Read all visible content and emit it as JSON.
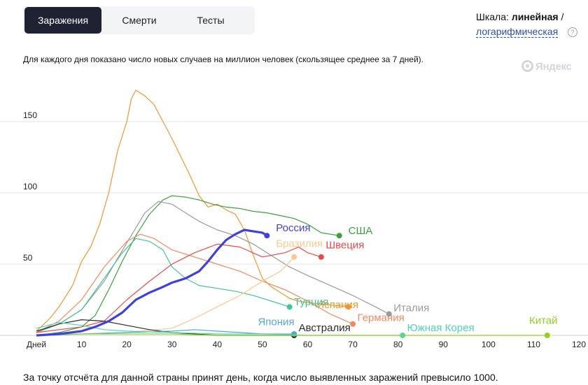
{
  "tabs": [
    {
      "label": "Заражения",
      "active": true
    },
    {
      "label": "Смерти",
      "active": false
    },
    {
      "label": "Тесты",
      "active": false
    }
  ],
  "scale": {
    "prefix": "Шкала:",
    "current": "линейная",
    "separator": "/",
    "alternative": "логарифмическая",
    "help": "?"
  },
  "description": "Для каждого дня показано число новых случаев на миллион человек (скользящее среднее за 7 дней).",
  "logo": "Яндекс",
  "footnote": "За точку отсчёта для данной страны принят день, когда число выявленных заражений превысило 1000.",
  "chart_data": {
    "type": "line",
    "x_first_label": "Дней",
    "xlim": [
      0,
      120
    ],
    "ylim": [
      0,
      175
    ],
    "x_ticks": [
      10,
      20,
      30,
      40,
      50,
      60,
      70,
      80,
      90,
      100,
      110,
      120
    ],
    "y_ticks": [
      50,
      100,
      150
    ],
    "grid": true,
    "series": [
      {
        "name": "Испания",
        "color": "#f0962e",
        "label_at": [
          62,
          19
        ],
        "highlight": false,
        "points": [
          [
            0,
            3
          ],
          [
            3,
            12
          ],
          [
            5,
            20
          ],
          [
            8,
            35
          ],
          [
            10,
            52
          ],
          [
            12,
            62
          ],
          [
            14,
            78
          ],
          [
            16,
            100
          ],
          [
            18,
            130
          ],
          [
            20,
            150
          ],
          [
            21,
            166
          ],
          [
            22,
            172
          ],
          [
            24,
            168
          ],
          [
            26,
            162
          ],
          [
            28,
            150
          ],
          [
            30,
            138
          ],
          [
            32,
            125
          ],
          [
            34,
            112
          ],
          [
            36,
            98
          ],
          [
            38,
            90
          ],
          [
            40,
            92
          ],
          [
            42,
            88
          ],
          [
            44,
            85
          ],
          [
            46,
            74
          ],
          [
            48,
            56
          ],
          [
            50,
            40
          ],
          [
            52,
            34
          ],
          [
            54,
            30
          ],
          [
            56,
            26
          ],
          [
            58,
            24
          ],
          [
            60,
            23
          ],
          [
            63,
            22
          ],
          [
            66,
            21
          ],
          [
            69,
            20
          ]
        ]
      },
      {
        "name": "США",
        "color": "#3ca03c",
        "label_at": [
          69,
          71
        ],
        "highlight": false,
        "points": [
          [
            0,
            0
          ],
          [
            5,
            2
          ],
          [
            10,
            6
          ],
          [
            13,
            14
          ],
          [
            16,
            32
          ],
          [
            19,
            52
          ],
          [
            22,
            70
          ],
          [
            25,
            85
          ],
          [
            28,
            95
          ],
          [
            30,
            98
          ],
          [
            33,
            97
          ],
          [
            36,
            95
          ],
          [
            39,
            92
          ],
          [
            42,
            90
          ],
          [
            45,
            89
          ],
          [
            48,
            87
          ],
          [
            51,
            86
          ],
          [
            54,
            84
          ],
          [
            57,
            82
          ],
          [
            60,
            78
          ],
          [
            63,
            72
          ],
          [
            67,
            70
          ]
        ]
      },
      {
        "name": "Италия",
        "color": "#9a9a9a",
        "label_at": [
          79,
          17
        ],
        "highlight": false,
        "points": [
          [
            0,
            2
          ],
          [
            5,
            8
          ],
          [
            10,
            18
          ],
          [
            15,
            38
          ],
          [
            20,
            65
          ],
          [
            24,
            86
          ],
          [
            27,
            94
          ],
          [
            30,
            92
          ],
          [
            33,
            86
          ],
          [
            36,
            80
          ],
          [
            40,
            74
          ],
          [
            44,
            70
          ],
          [
            48,
            64
          ],
          [
            52,
            56
          ],
          [
            56,
            48
          ],
          [
            60,
            42
          ],
          [
            65,
            35
          ],
          [
            70,
            28
          ],
          [
            75,
            20
          ],
          [
            78,
            15
          ]
        ]
      },
      {
        "name": "Турция",
        "color": "#3fc596",
        "label_at": [
          57,
          21
        ],
        "highlight": false,
        "points": [
          [
            0,
            2
          ],
          [
            5,
            8
          ],
          [
            10,
            18
          ],
          [
            15,
            40
          ],
          [
            19,
            58
          ],
          [
            22,
            68
          ],
          [
            25,
            66
          ],
          [
            28,
            60
          ],
          [
            30,
            48
          ],
          [
            33,
            40
          ],
          [
            36,
            35
          ],
          [
            40,
            33
          ],
          [
            44,
            31
          ],
          [
            48,
            28
          ],
          [
            52,
            24
          ],
          [
            56,
            20
          ]
        ]
      },
      {
        "name": "Германия",
        "color": "#f5885f",
        "label_at": [
          71,
          10
        ],
        "highlight": false,
        "points": [
          [
            0,
            2
          ],
          [
            5,
            10
          ],
          [
            10,
            25
          ],
          [
            15,
            48
          ],
          [
            20,
            66
          ],
          [
            23,
            71
          ],
          [
            26,
            68
          ],
          [
            30,
            60
          ],
          [
            35,
            55
          ],
          [
            40,
            50
          ],
          [
            45,
            45
          ],
          [
            50,
            38
          ],
          [
            55,
            32
          ],
          [
            60,
            24
          ],
          [
            65,
            15
          ],
          [
            70,
            8
          ]
        ]
      },
      {
        "name": "Швеция",
        "color": "#e84a4a",
        "label_at": [
          64,
          61
        ],
        "highlight": false,
        "points": [
          [
            0,
            2
          ],
          [
            10,
            6
          ],
          [
            15,
            10
          ],
          [
            20,
            25
          ],
          [
            25,
            38
          ],
          [
            30,
            50
          ],
          [
            35,
            58
          ],
          [
            40,
            64
          ],
          [
            45,
            62
          ],
          [
            50,
            55
          ],
          [
            55,
            58
          ],
          [
            58,
            62
          ],
          [
            60,
            58
          ],
          [
            63,
            55
          ]
        ]
      },
      {
        "name": "Бразилия",
        "color": "#fcc98c",
        "label_at": [
          53,
          62
        ],
        "highlight": false,
        "points": [
          [
            0,
            0
          ],
          [
            10,
            1
          ],
          [
            20,
            2
          ],
          [
            30,
            5
          ],
          [
            35,
            12
          ],
          [
            40,
            20
          ],
          [
            45,
            28
          ],
          [
            50,
            38
          ],
          [
            54,
            45
          ],
          [
            57,
            55
          ]
        ]
      },
      {
        "name": "Россия",
        "color": "#4040e0",
        "label_at": [
          53,
          73
        ],
        "highlight": true,
        "points": [
          [
            0,
            0
          ],
          [
            5,
            1
          ],
          [
            10,
            3
          ],
          [
            13,
            6
          ],
          [
            16,
            10
          ],
          [
            19,
            16
          ],
          [
            22,
            25
          ],
          [
            25,
            30
          ],
          [
            28,
            34
          ],
          [
            30,
            37
          ],
          [
            33,
            40
          ],
          [
            36,
            45
          ],
          [
            38,
            52
          ],
          [
            40,
            60
          ],
          [
            42,
            67
          ],
          [
            44,
            71
          ],
          [
            46,
            74
          ],
          [
            48,
            73
          ],
          [
            50,
            72
          ],
          [
            51,
            70
          ]
        ]
      },
      {
        "name": "Австралия",
        "color": "#2a2a2a",
        "label_at": [
          58,
          3
        ],
        "highlight": false,
        "points": [
          [
            0,
            3
          ],
          [
            5,
            8
          ],
          [
            10,
            11
          ],
          [
            15,
            10
          ],
          [
            20,
            7
          ],
          [
            25,
            4
          ],
          [
            30,
            2
          ],
          [
            35,
            1
          ],
          [
            40,
            0
          ],
          [
            50,
            0
          ],
          [
            57,
            0
          ]
        ]
      },
      {
        "name": "Япония",
        "color": "#50a8e0",
        "label_at": [
          49,
          7
        ],
        "highlight": false,
        "points": [
          [
            0,
            0
          ],
          [
            10,
            1
          ],
          [
            20,
            2
          ],
          [
            30,
            3
          ],
          [
            35,
            4
          ],
          [
            40,
            3
          ],
          [
            45,
            2
          ],
          [
            50,
            1
          ],
          [
            57,
            1
          ]
        ]
      },
      {
        "name": "Южная Корея",
        "color": "#4dd6b0",
        "label_at": [
          82,
          3
        ],
        "highlight": false,
        "points": [
          [
            0,
            5
          ],
          [
            5,
            9
          ],
          [
            10,
            7
          ],
          [
            15,
            4
          ],
          [
            20,
            3
          ],
          [
            30,
            2
          ],
          [
            40,
            1
          ],
          [
            50,
            1
          ],
          [
            60,
            0
          ],
          [
            70,
            0
          ],
          [
            81,
            0
          ]
        ]
      },
      {
        "name": "Китай",
        "color": "#8fd21f",
        "label_at": [
          109,
          8
        ],
        "highlight": false,
        "points": [
          [
            0,
            0
          ],
          [
            10,
            1
          ],
          [
            20,
            1
          ],
          [
            30,
            1
          ],
          [
            40,
            0
          ],
          [
            50,
            0
          ],
          [
            60,
            0
          ],
          [
            70,
            0
          ],
          [
            80,
            0
          ],
          [
            90,
            0
          ],
          [
            100,
            0
          ],
          [
            113,
            0
          ]
        ]
      }
    ]
  }
}
